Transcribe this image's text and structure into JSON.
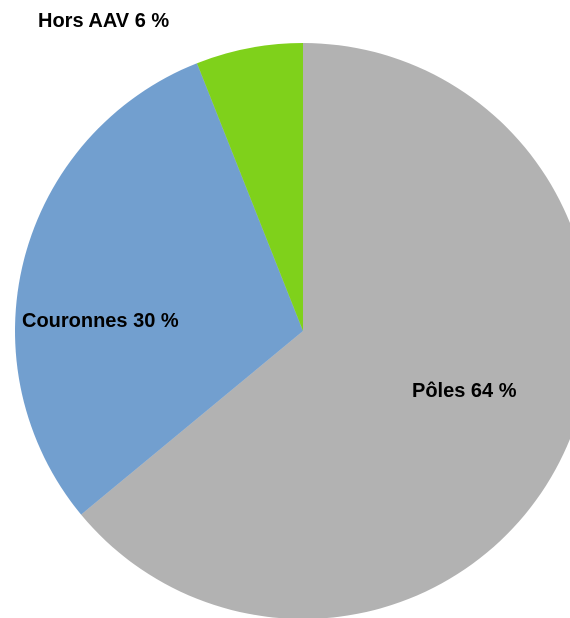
{
  "chart_data": {
    "type": "pie",
    "categories": [
      "Pôles",
      "Couronnes",
      "Hors AAV"
    ],
    "values": [
      64,
      30,
      6
    ],
    "value_labels": [
      "64 %",
      "30 %",
      "6 %"
    ],
    "colors": [
      "#b2b2b2",
      "#729fcf",
      "#7fd11b"
    ]
  }
}
